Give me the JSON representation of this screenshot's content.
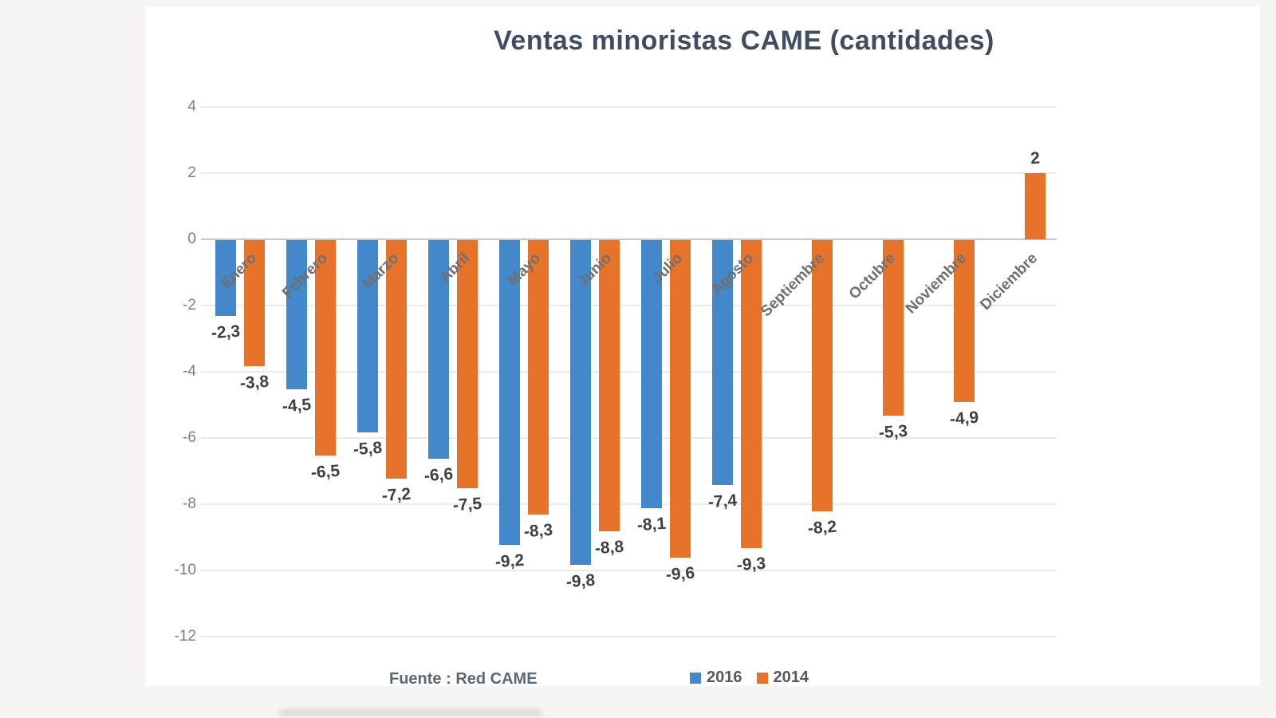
{
  "title": "Ventas minoristas CAME (cantidades)",
  "source": "Fuente : Red CAME",
  "legend": [
    {
      "label": "2016",
      "color": "#4288cb"
    },
    {
      "label": "2014",
      "color": "#e7722a"
    }
  ],
  "colors": {
    "series_2016": "#4288cb",
    "series_2014": "#e7722a",
    "title": "#3e4d62",
    "gridline": "#ebeae8",
    "axis_line": "#c9c6c3",
    "tick_text": "#7d7d7d",
    "category_text": "#6f6f6f",
    "data_label_text": "#3f3f3f"
  },
  "chart_data": {
    "type": "bar",
    "title": "Ventas minoristas CAME (cantidades)",
    "categories": [
      "Enero",
      "Febrero",
      "Marzo",
      "Abril",
      "Mayo",
      "Junio",
      "Julio",
      "Agosto",
      "Septiembre",
      "Octubre",
      "Noviembre",
      "Diciembre"
    ],
    "series": [
      {
        "name": "2016",
        "values": [
          -2.3,
          -4.5,
          -5.8,
          -6.6,
          -9.2,
          -9.8,
          -8.1,
          -7.4,
          null,
          null,
          null,
          null
        ]
      },
      {
        "name": "2014",
        "values": [
          -3.8,
          -6.5,
          -7.2,
          -7.5,
          -8.3,
          -8.8,
          -9.6,
          -9.3,
          -8.2,
          -5.3,
          -4.9,
          2
        ]
      }
    ],
    "data_labels": {
      "2016": [
        "-2,3",
        "-4,5",
        "-5,8",
        "-6,6",
        "-9,2",
        "-9,8",
        "-8,1",
        "-7,4",
        null,
        null,
        null,
        null
      ],
      "2014": [
        "-3,8",
        "-6,5",
        "-7,2",
        "-7,5",
        "-8,3",
        "-8,8",
        "-9,6",
        "-9,3",
        "-8,2",
        "-5,3",
        "-4,9",
        "2"
      ]
    },
    "xlabel": "",
    "ylabel": "",
    "y_ticks": [
      4,
      2,
      0,
      -2,
      -4,
      -6,
      -8,
      -10,
      -12
    ],
    "ylim": [
      -12,
      4
    ],
    "grid": true,
    "legend_position": "bottom",
    "decimal_separator": ","
  }
}
